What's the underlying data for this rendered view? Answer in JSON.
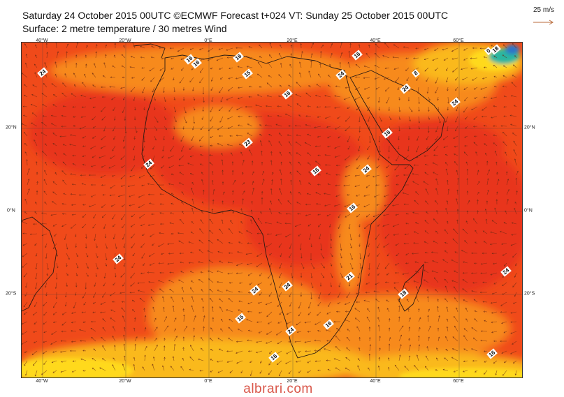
{
  "header": {
    "title": "Saturday 24 October 2015 00UTC ©ECMWF Forecast t+024 VT: Sunday 25 October 2015 00UTC",
    "subtitle": "Surface: 2 metre temperature / 30 metres Wind"
  },
  "scale": {
    "label": "25 m/s"
  },
  "map": {
    "lon_ticks": [
      "40°W",
      "20°W",
      "0°E",
      "20°E",
      "40°E",
      "60°E"
    ],
    "lat_ticks": [
      "20°N",
      "0°N",
      "20°S"
    ],
    "contour_labels": [
      "24",
      "16",
      "16",
      "15",
      "16",
      "16",
      "24",
      "8",
      "24",
      "24",
      "0",
      "18",
      "24",
      "23",
      "24",
      "16",
      "24",
      "16",
      "16",
      "24",
      "21",
      "24",
      "18",
      "24",
      "16",
      "24",
      "15",
      "16",
      "16",
      "16"
    ],
    "colors": {
      "ocean_warm": "#f04a1a",
      "ocean_hot": "#e8361a",
      "land_hot": "#e8301e",
      "mild": "#f78a1c",
      "cool": "#fab91c",
      "cold": "#ffd91a",
      "very_cold": "#2bb6a0",
      "frozen": "#2d73c8"
    }
  },
  "watermark": {
    "text": "albrari.com"
  }
}
